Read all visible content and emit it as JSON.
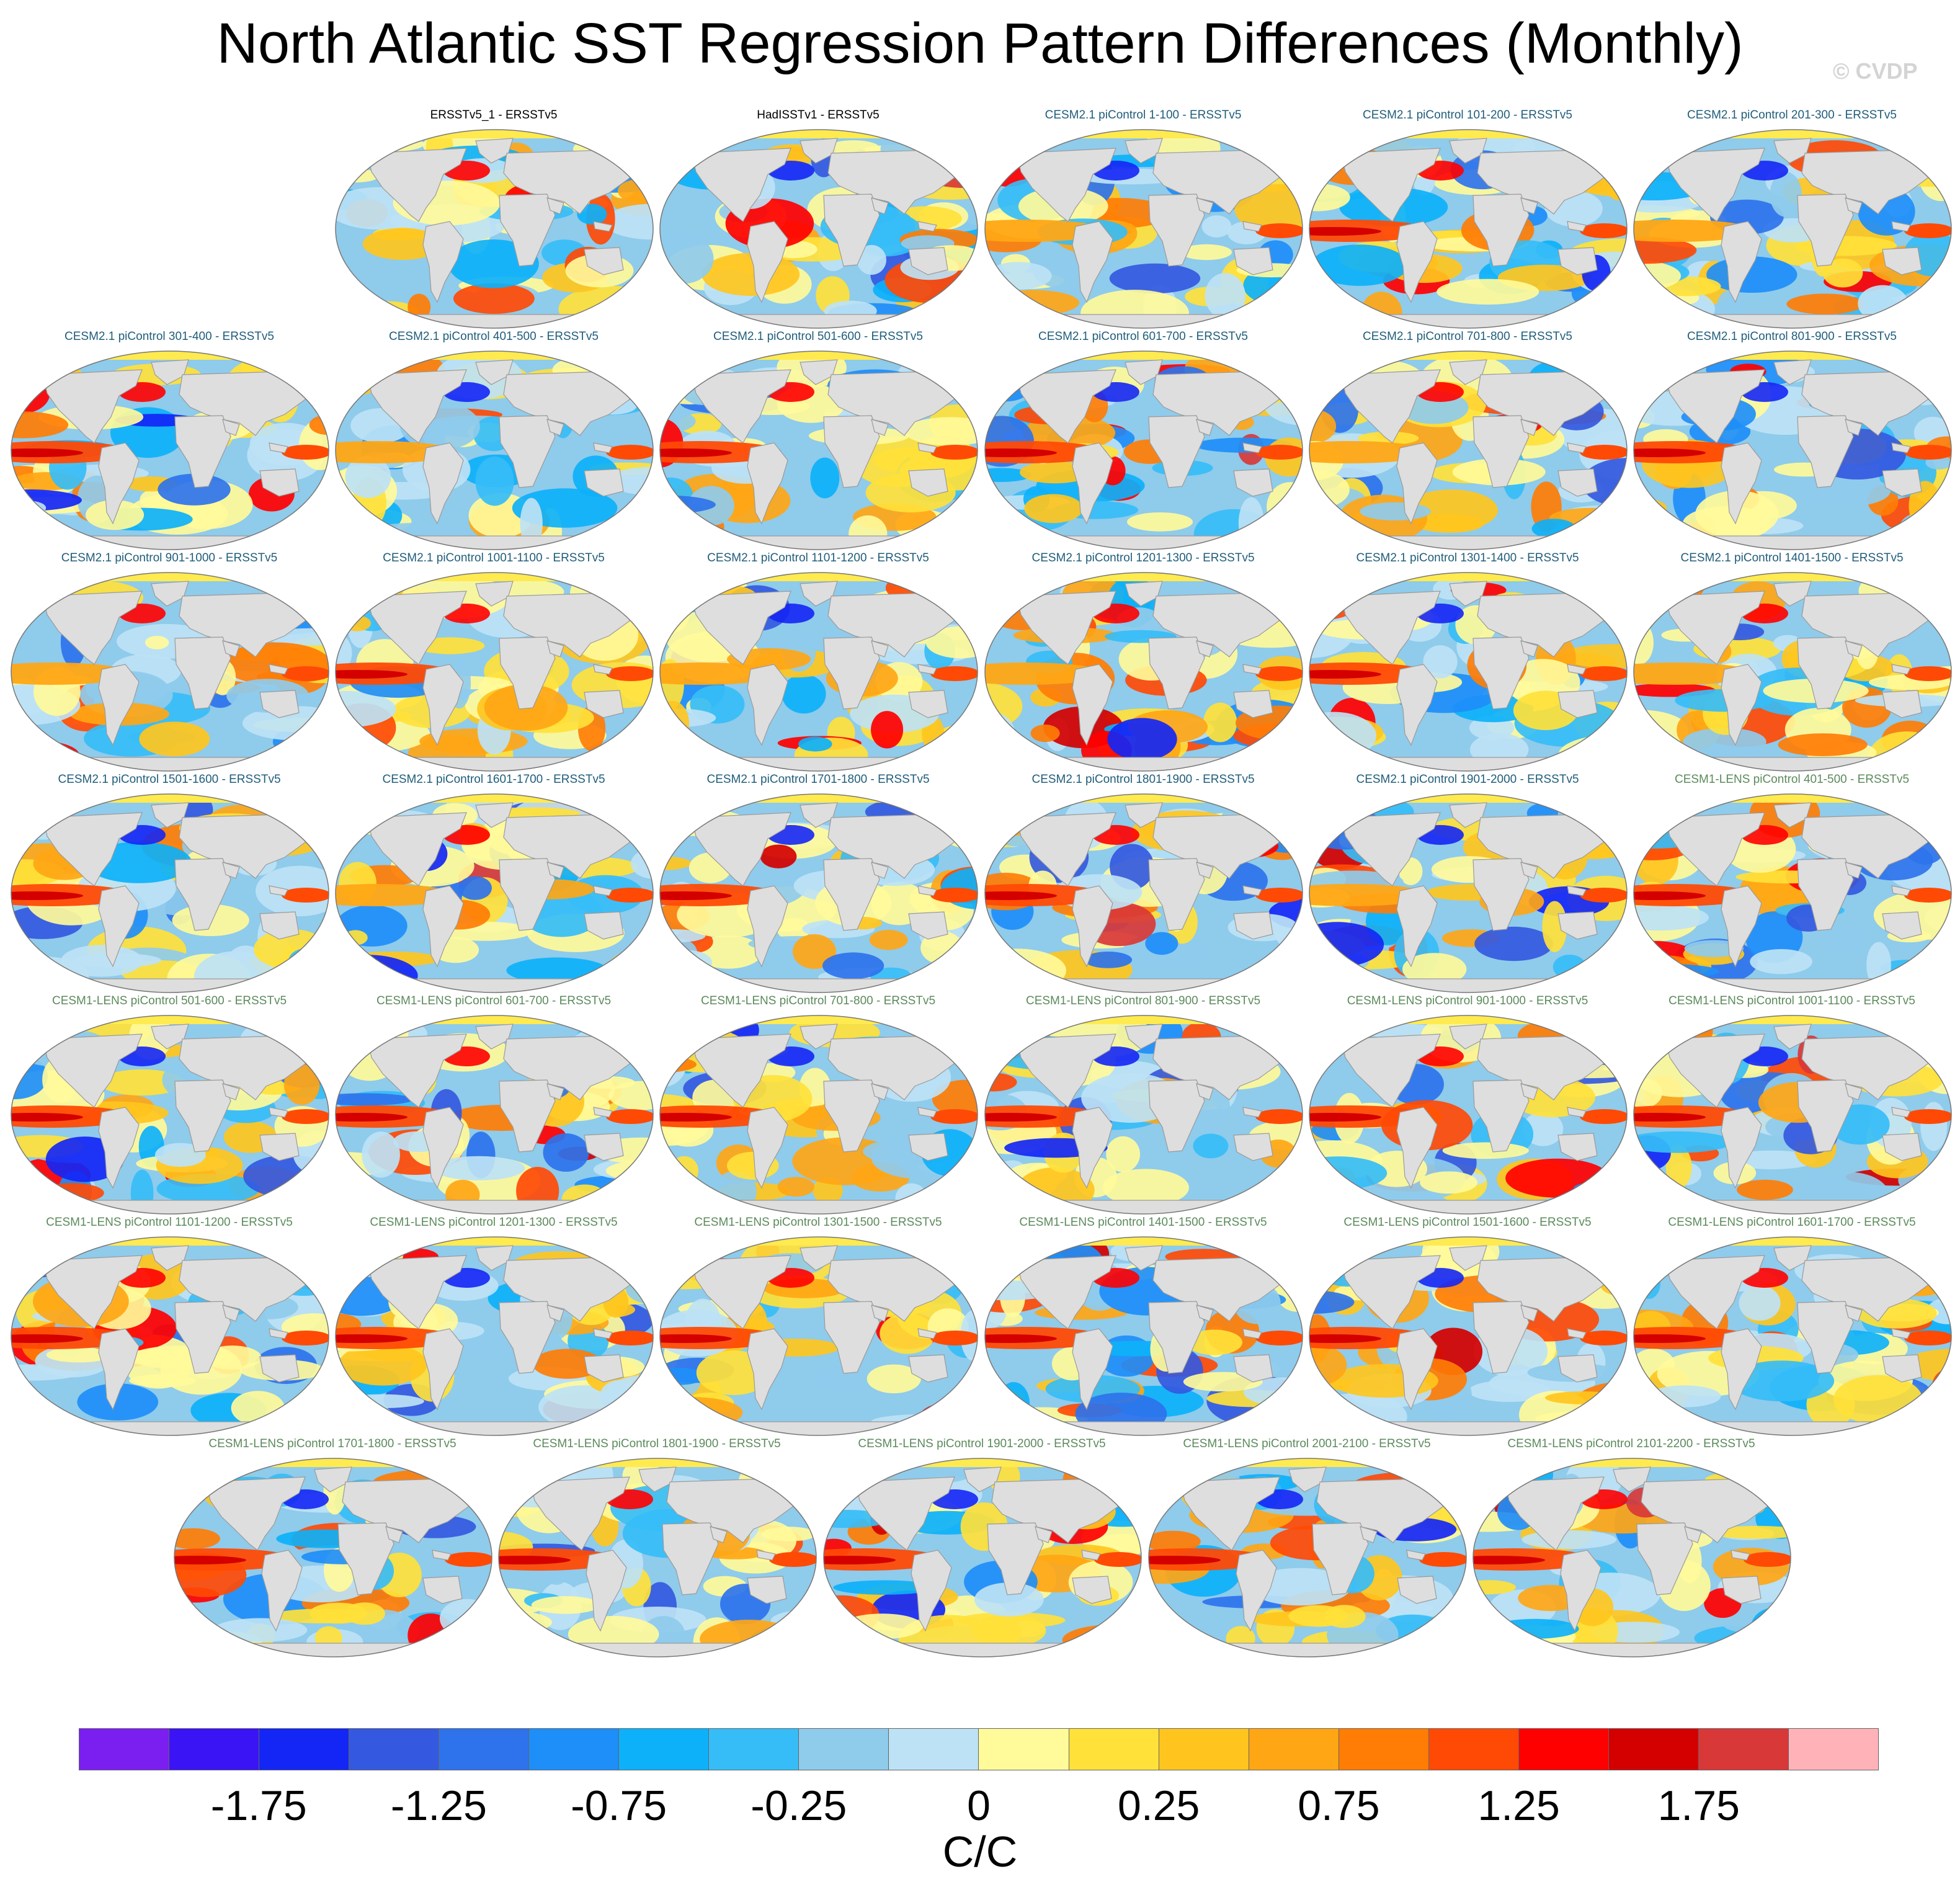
{
  "title": "North Atlantic SST Regression Pattern Differences (Monthly)",
  "watermark": "© CVDP",
  "chart_data": {
    "type": "heatmap",
    "title": "North Atlantic SST Regression Pattern Differences (Monthly)",
    "projection": "global map (Robinson-like), ocean shaded, land gray",
    "panels": [
      {
        "label": "ERSSTv5_1 - ERSSTv5",
        "group": "obs"
      },
      {
        "label": "HadISSTv1 - ERSSTv5",
        "group": "obs"
      },
      {
        "label": "CESM2.1 piControl 1-100 - ERSSTv5",
        "group": "cesm2"
      },
      {
        "label": "CESM2.1 piControl 101-200 - ERSSTv5",
        "group": "cesm2"
      },
      {
        "label": "CESM2.1 piControl 201-300 - ERSSTv5",
        "group": "cesm2"
      },
      {
        "label": "CESM2.1 piControl 301-400 - ERSSTv5",
        "group": "cesm2"
      },
      {
        "label": "CESM2.1 piControl 401-500 - ERSSTv5",
        "group": "cesm2"
      },
      {
        "label": "CESM2.1 piControl 501-600 - ERSSTv5",
        "group": "cesm2"
      },
      {
        "label": "CESM2.1 piControl 601-700 - ERSSTv5",
        "group": "cesm2"
      },
      {
        "label": "CESM2.1 piControl 701-800 - ERSSTv5",
        "group": "cesm2"
      },
      {
        "label": "CESM2.1 piControl 801-900 - ERSSTv5",
        "group": "cesm2"
      },
      {
        "label": "CESM2.1 piControl 901-1000 - ERSSTv5",
        "group": "cesm2"
      },
      {
        "label": "CESM2.1 piControl 1001-1100 - ERSSTv5",
        "group": "cesm2"
      },
      {
        "label": "CESM2.1 piControl 1101-1200 - ERSSTv5",
        "group": "cesm2"
      },
      {
        "label": "CESM2.1 piControl 1201-1300 - ERSSTv5",
        "group": "cesm2"
      },
      {
        "label": "CESM2.1 piControl 1301-1400 - ERSSTv5",
        "group": "cesm2"
      },
      {
        "label": "CESM2.1 piControl 1401-1500 - ERSSTv5",
        "group": "cesm2"
      },
      {
        "label": "CESM2.1 piControl 1501-1600 - ERSSTv5",
        "group": "cesm2"
      },
      {
        "label": "CESM2.1 piControl 1601-1700 - ERSSTv5",
        "group": "cesm2"
      },
      {
        "label": "CESM2.1 piControl 1701-1800 - ERSSTv5",
        "group": "cesm2"
      },
      {
        "label": "CESM2.1 piControl 1801-1900 - ERSSTv5",
        "group": "cesm2"
      },
      {
        "label": "CESM2.1 piControl 1901-2000 - ERSSTv5",
        "group": "cesm2"
      },
      {
        "label": "CESM1-LENS piControl 401-500 - ERSSTv5",
        "group": "lens"
      },
      {
        "label": "CESM1-LENS piControl 501-600 - ERSSTv5",
        "group": "lens"
      },
      {
        "label": "CESM1-LENS piControl 601-700 - ERSSTv5",
        "group": "lens"
      },
      {
        "label": "CESM1-LENS piControl 701-800 - ERSSTv5",
        "group": "lens"
      },
      {
        "label": "CESM1-LENS piControl 801-900 - ERSSTv5",
        "group": "lens"
      },
      {
        "label": "CESM1-LENS piControl 901-1000 - ERSSTv5",
        "group": "lens"
      },
      {
        "label": "CESM1-LENS piControl 1001-1100 - ERSSTv5",
        "group": "lens"
      },
      {
        "label": "CESM1-LENS piControl 1101-1200 - ERSSTv5",
        "group": "lens"
      },
      {
        "label": "CESM1-LENS piControl 1201-1300 - ERSSTv5",
        "group": "lens"
      },
      {
        "label": "CESM1-LENS piControl 1301-1500 - ERSSTv5",
        "group": "lens"
      },
      {
        "label": "CESM1-LENS piControl 1401-1500 - ERSSTv5",
        "group": "lens"
      },
      {
        "label": "CESM1-LENS piControl 1501-1600 - ERSSTv5",
        "group": "lens"
      },
      {
        "label": "CESM1-LENS piControl 1601-1700 - ERSSTv5",
        "group": "lens"
      },
      {
        "label": "CESM1-LENS piControl 1701-1800 - ERSSTv5",
        "group": "lens"
      },
      {
        "label": "CESM1-LENS piControl 1801-1900 - ERSSTv5",
        "group": "lens"
      },
      {
        "label": "CESM1-LENS piControl 1901-2000 - ERSSTv5",
        "group": "lens"
      },
      {
        "label": "CESM1-LENS piControl 2001-2100 - ERSSTv5",
        "group": "lens"
      },
      {
        "label": "CESM1-LENS piControl 2101-2200 - ERSSTv5",
        "group": "lens"
      }
    ],
    "colorbar": {
      "units": "C/C",
      "tick_labels": [
        "-1.75",
        "-1.25",
        "-0.75",
        "-0.25",
        "0",
        "0.25",
        "0.75",
        "1.25",
        "1.75"
      ],
      "colors": [
        "#7a1ff0",
        "#3b14f5",
        "#1426f5",
        "#3459e0",
        "#2e73ec",
        "#1e8ef8",
        "#0db1fa",
        "#36bdf7",
        "#8fcbeb",
        "#bde2f5",
        "#fffa9a",
        "#ffe13a",
        "#ffc51e",
        "#ffa615",
        "#ff7d05",
        "#ff4a05",
        "#ff0000",
        "#d40000",
        "#d93838",
        "#ffb3b8"
      ]
    },
    "land_color": "#dedede",
    "polar_cap_color": "#ffea50"
  }
}
